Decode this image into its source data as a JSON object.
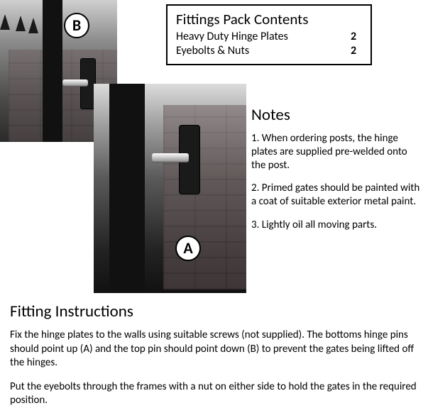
{
  "contents": {
    "title": "Fittings Pack Contents",
    "rows": [
      {
        "label": "Heavy Duty Hinge Plates",
        "qty": "2"
      },
      {
        "label": "Eyebolts & Nuts",
        "qty": "2"
      }
    ]
  },
  "labels": {
    "a": "A",
    "b": "B"
  },
  "notes": {
    "title": "Notes",
    "items": [
      "1. When ordering posts, the hinge plates are supplied pre-welded onto the post.",
      "2. Primed gates should be painted with a coat of suitable exterior metal paint.",
      "3. Lightly oil all moving parts."
    ]
  },
  "instructions": {
    "title": "Fitting Instructions",
    "paragraphs": [
      "Fix the hinge plates to the walls using suitable screws (not supplied). The bottoms hinge pins should point up (A) and the top pin should point down (B) to prevent the gates being lifted off the hinges.",
      "Put the eyebolts through the frames with a nut on either side to hold the gates in the required position."
    ]
  },
  "style": {
    "page_bg": "#ffffff",
    "text_color": "#000000",
    "border_color": "#000000",
    "font_family": "Calibri, Arial, sans-serif",
    "title_fontsize_pt": 17,
    "body_fontsize_pt": 11
  }
}
